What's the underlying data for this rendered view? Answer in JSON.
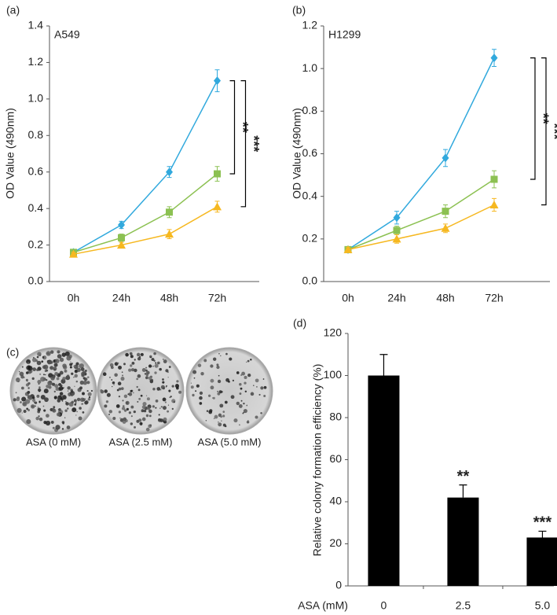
{
  "chart_data": [
    {
      "type": "line",
      "panel_label": "(a)",
      "annotation": "A549",
      "y_label": "OD Value (490nm)",
      "categories": [
        "0h",
        "24h",
        "48h",
        "72h"
      ],
      "series": [
        {
          "color": "#31a9dd",
          "marker": "diamond",
          "values": [
            0.16,
            0.31,
            0.6,
            1.1
          ],
          "errors": [
            0.01,
            0.02,
            0.03,
            0.06
          ]
        },
        {
          "color": "#8cc152",
          "marker": "square",
          "values": [
            0.16,
            0.24,
            0.38,
            0.59
          ],
          "errors": [
            0.01,
            0.02,
            0.03,
            0.04
          ]
        },
        {
          "color": "#f6b820",
          "marker": "triangle",
          "values": [
            0.15,
            0.2,
            0.26,
            0.41
          ],
          "errors": [
            0.01,
            0.015,
            0.025,
            0.03
          ]
        }
      ],
      "brackets": [
        {
          "label": "**",
          "series": [
            0,
            1
          ]
        },
        {
          "label": "***",
          "series": [
            0,
            2
          ]
        }
      ],
      "ylim": [
        0,
        1.4
      ],
      "yticks": [
        {
          "value": 0,
          "label": "0.0"
        },
        {
          "value": 0.2,
          "label": "0.2"
        },
        {
          "value": 0.4,
          "label": "0.4"
        },
        {
          "value": 0.6,
          "label": "0.6"
        },
        {
          "value": 0.8,
          "label": "0.8"
        },
        {
          "value": 1,
          "label": "1.0"
        },
        {
          "value": 1.2,
          "label": "1.2"
        },
        {
          "value": 1.4,
          "label": "1.4"
        }
      ]
    },
    {
      "type": "line",
      "panel_label": "(b)",
      "annotation": "H1299",
      "y_label": "OD Value (490nm)",
      "categories": [
        "0h",
        "24h",
        "48h",
        "72h"
      ],
      "series": [
        {
          "color": "#31a9dd",
          "marker": "diamond",
          "values": [
            0.15,
            0.3,
            0.58,
            1.05
          ],
          "errors": [
            0.01,
            0.03,
            0.04,
            0.04
          ]
        },
        {
          "color": "#8cc152",
          "marker": "square",
          "values": [
            0.15,
            0.24,
            0.33,
            0.48
          ],
          "errors": [
            0.01,
            0.02,
            0.03,
            0.04
          ]
        },
        {
          "color": "#f6b820",
          "marker": "triangle",
          "values": [
            0.15,
            0.2,
            0.25,
            0.36
          ],
          "errors": [
            0.01,
            0.02,
            0.02,
            0.03
          ]
        }
      ],
      "brackets": [
        {
          "label": "**",
          "series": [
            0,
            1
          ]
        },
        {
          "label": "***",
          "series": [
            0,
            2
          ]
        }
      ],
      "ylim": [
        0,
        1.2
      ],
      "yticks": [
        {
          "value": 0,
          "label": "0.0"
        },
        {
          "value": 0.2,
          "label": "0.2"
        },
        {
          "value": 0.4,
          "label": "0.4"
        },
        {
          "value": 0.6,
          "label": "0.6"
        },
        {
          "value": 0.8,
          "label": "0.8"
        },
        {
          "value": 1,
          "label": "1.0"
        },
        {
          "value": 1.2,
          "label": "1.2"
        }
      ]
    },
    {
      "type": "bar",
      "panel_label": "(d)",
      "y_label": "Relative colony formation efficiency (%)",
      "x_label": "ASA (mM)",
      "categories": [
        "0",
        "2.5",
        "5.0"
      ],
      "values": [
        100,
        42,
        23
      ],
      "errors": [
        10,
        6,
        3
      ],
      "annotations": [
        null,
        "**",
        "***"
      ],
      "color": "#000000",
      "ylim": [
        0,
        120
      ],
      "yticks": [
        0,
        20,
        40,
        60,
        80,
        100,
        120
      ]
    }
  ],
  "panel_c": {
    "panel_label": "(c)",
    "captions": [
      "ASA (0 mM)",
      "ASA (2.5 mM)",
      "ASA (5.0 mM)"
    ]
  }
}
